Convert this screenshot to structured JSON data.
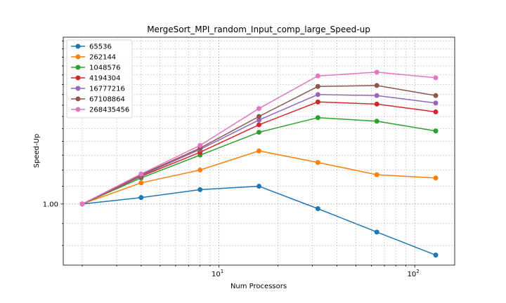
{
  "chart_data": {
    "type": "line",
    "title": "MergeSort_MPI_random_Input_comp_large_Speed-up",
    "xlabel": "Num Processors",
    "ylabel": "Speed-Up",
    "x_scale": "log",
    "y_scale": "log",
    "grid": true,
    "legend_position": "top-left",
    "x": [
      2,
      4,
      8,
      16,
      32,
      64,
      128
    ],
    "xlim": [
      1.6,
      160
    ],
    "ylim": [
      0.72,
      2.45
    ],
    "x_ticks": [
      {
        "value": 10,
        "label": "10^1"
      },
      {
        "value": 100,
        "label": "10^2"
      }
    ],
    "y_ticks": [
      {
        "value": 1.0,
        "label": "1.00"
      }
    ],
    "series": [
      {
        "name": "65536",
        "color": "#1f77b4",
        "values": [
          1.0,
          1.035,
          1.08,
          1.1,
          0.975,
          0.86,
          0.76
        ]
      },
      {
        "name": "262144",
        "color": "#ff7f0e",
        "values": [
          1.0,
          1.12,
          1.2,
          1.33,
          1.25,
          1.17,
          1.15
        ]
      },
      {
        "name": "1048576",
        "color": "#2ca02c",
        "values": [
          1.0,
          1.15,
          1.3,
          1.47,
          1.59,
          1.56,
          1.48
        ]
      },
      {
        "name": "4194304",
        "color": "#d62728",
        "values": [
          1.0,
          1.16,
          1.32,
          1.53,
          1.73,
          1.71,
          1.64
        ]
      },
      {
        "name": "16777216",
        "color": "#9467bd",
        "values": [
          1.0,
          1.165,
          1.34,
          1.57,
          1.8,
          1.79,
          1.72
        ]
      },
      {
        "name": "67108864",
        "color": "#8c564b",
        "values": [
          1.0,
          1.17,
          1.35,
          1.6,
          1.88,
          1.89,
          1.79
        ]
      },
      {
        "name": "268435456",
        "color": "#e377c2",
        "values": [
          1.0,
          1.175,
          1.37,
          1.67,
          1.99,
          2.03,
          1.97
        ]
      }
    ]
  }
}
